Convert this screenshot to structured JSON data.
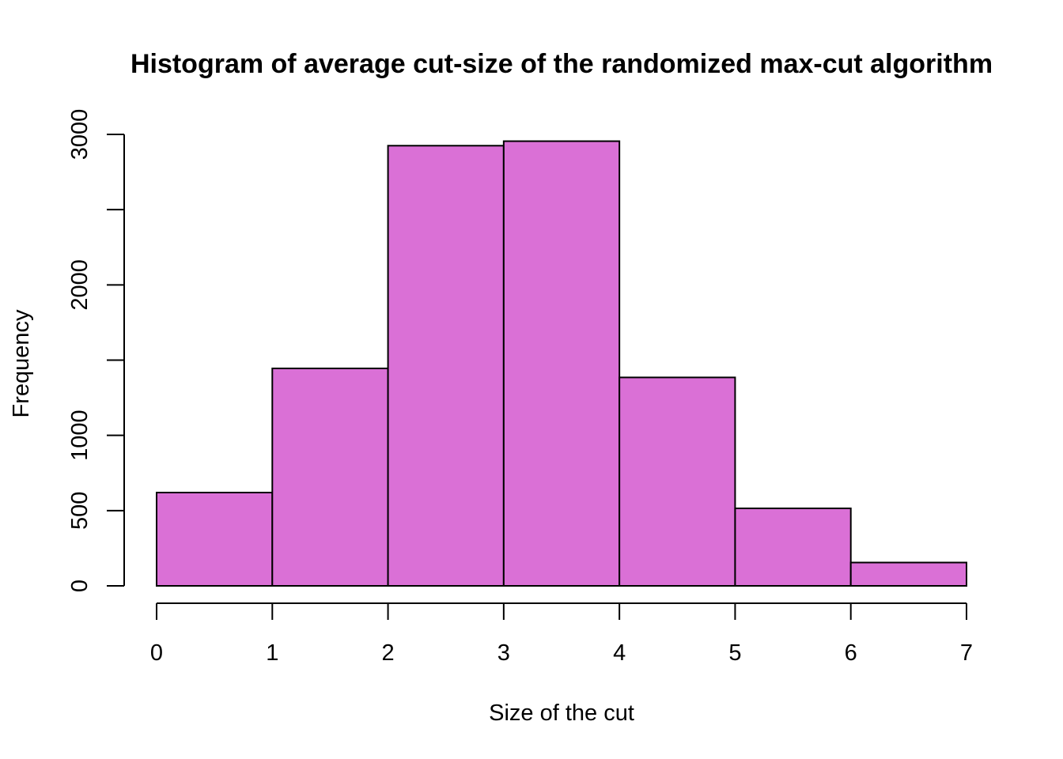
{
  "chart_data": {
    "type": "bar",
    "subtype": "histogram",
    "title": "Histogram of average cut-size of the randomized max-cut algorithm",
    "xlabel": "Size of the cut",
    "ylabel": "Frequency",
    "bins": [
      [
        0,
        1
      ],
      [
        1,
        2
      ],
      [
        2,
        3
      ],
      [
        3,
        4
      ],
      [
        4,
        5
      ],
      [
        5,
        6
      ],
      [
        6,
        7
      ]
    ],
    "values": [
      620,
      1445,
      2925,
      2955,
      1385,
      515,
      155
    ],
    "xlim": [
      0,
      7
    ],
    "ylim": [
      0,
      3000
    ],
    "x_ticks": [
      0,
      1,
      2,
      3,
      4,
      5,
      6,
      7
    ],
    "x_tick_labels": [
      "0",
      "1",
      "2",
      "3",
      "4",
      "5",
      "6",
      "7"
    ],
    "y_ticks": [
      0,
      500,
      1000,
      1500,
      2000,
      2500,
      3000
    ],
    "y_tick_labels": [
      "0",
      "500",
      "1000",
      "",
      "2000",
      "",
      "3000"
    ],
    "bar_color": "#da70d6",
    "border_color": "#000000",
    "grid": false,
    "legend": "none"
  }
}
